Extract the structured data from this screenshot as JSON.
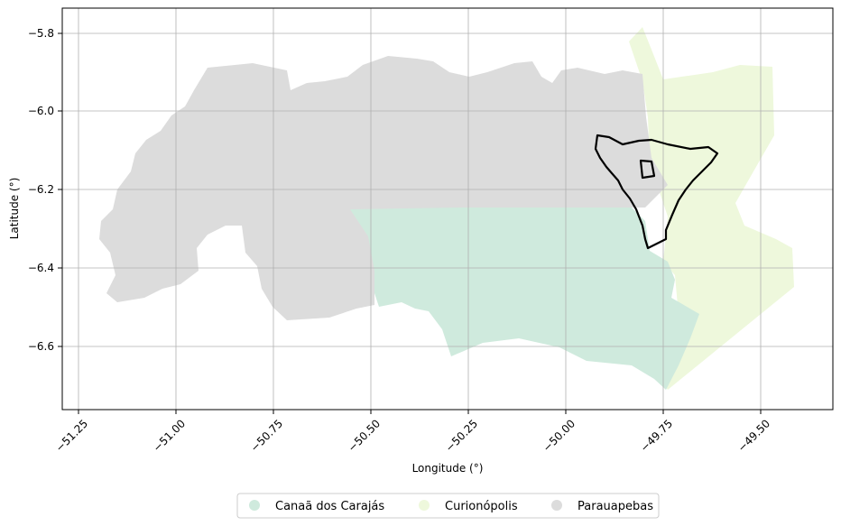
{
  "map": {
    "x_axis": {
      "label": "Longitude (°)",
      "ticks": [
        "−51.25",
        "−51.00",
        "−50.75",
        "−50.50",
        "−50.25",
        "−50.00",
        "−49.75",
        "−49.50"
      ]
    },
    "y_axis": {
      "label": "Latitude (°)",
      "ticks": [
        "−5.8",
        "−6.0",
        "−6.2",
        "−6.4",
        "−6.6"
      ]
    },
    "grid": true,
    "legend": {
      "placement": "bottom-center",
      "items": [
        {
          "label": "Canaã dos Carajás",
          "color": "#cfeadd"
        },
        {
          "label": "Curionópolis",
          "color": "#eef8dc"
        },
        {
          "label": "Parauapebas",
          "color": "#dcdcdc"
        }
      ]
    },
    "colors": {
      "canaa": "#cfeadd",
      "curionopolis": "#eef8dc",
      "parauapebas": "#dcdcdc",
      "outline": "#000000",
      "grid": "#b0b0b0"
    }
  }
}
